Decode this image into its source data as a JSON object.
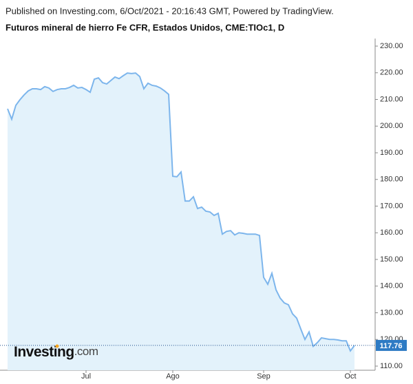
{
  "chart_data": {
    "type": "area",
    "published": "Published on Investing.com, 6/Oct/2021 - 20:16:43 GMT, Powered by TradingView.",
    "title": "Futuros mineral de hierro Fe CFR, Estados Unidos, CME:TIOc1, D",
    "logo_main": "Investing",
    "logo_suffix": ".com",
    "line_color": "#7cb5ec",
    "fill_color": "#e3f2fb",
    "last_label_color": "#2e7bc4",
    "categories": [
      null,
      null,
      null,
      null,
      null,
      null,
      null,
      null,
      null,
      null,
      null,
      null,
      null,
      null,
      null,
      null,
      null,
      null,
      null,
      "Jul",
      null,
      null,
      null,
      null,
      null,
      null,
      null,
      null,
      null,
      null,
      null,
      null,
      null,
      null,
      null,
      null,
      null,
      null,
      null,
      null,
      "Ago",
      null,
      null,
      null,
      null,
      null,
      null,
      null,
      null,
      null,
      null,
      null,
      null,
      null,
      null,
      null,
      null,
      null,
      null,
      null,
      null,
      null,
      "Sep",
      null,
      null,
      null,
      null,
      null,
      null,
      null,
      null,
      null,
      null,
      null,
      null,
      null,
      null,
      null,
      null,
      null,
      null,
      null,
      null,
      "Oct",
      null
    ],
    "values": [
      206.5,
      202.6,
      207.8,
      209.9,
      211.7,
      213.2,
      214,
      214,
      213.7,
      214.8,
      214.3,
      213,
      213.7,
      214,
      214,
      214.5,
      215.3,
      214.3,
      214.5,
      213.7,
      212.7,
      217.6,
      218.1,
      216.3,
      215.8,
      217.1,
      218.4,
      217.8,
      218.9,
      219.9,
      219.7,
      219.9,
      218.6,
      214,
      216.1,
      215.3,
      215,
      214.3,
      213.2,
      211.9,
      181.2,
      181,
      182.8,
      171.9,
      171.9,
      173.5,
      169.1,
      169.6,
      168.1,
      167.8,
      166.5,
      167.3,
      159.5,
      160.5,
      160.8,
      159.2,
      160,
      159.8,
      159.5,
      159.5,
      159.5,
      159,
      143.3,
      140.7,
      144.8,
      138.6,
      135.5,
      133.7,
      133,
      129.6,
      128,
      123.9,
      120,
      122.8,
      117.4,
      118.8,
      120.6,
      120.3,
      120,
      120,
      119.8,
      119.5,
      119.5,
      115.7,
      117.76
    ],
    "ylim": [
      110,
      230
    ],
    "yticks": [
      {
        "value": 110,
        "label": "110.00"
      },
      {
        "value": 120,
        "label": "120.00"
      },
      {
        "value": 130,
        "label": "130.00"
      },
      {
        "value": 140,
        "label": "140.00"
      },
      {
        "value": 150,
        "label": "150.00"
      },
      {
        "value": 160,
        "label": "160.00"
      },
      {
        "value": 170,
        "label": "170.00"
      },
      {
        "value": 180,
        "label": "180.00"
      },
      {
        "value": 190,
        "label": "190.00"
      },
      {
        "value": 200,
        "label": "200.00"
      },
      {
        "value": 210,
        "label": "210.00"
      },
      {
        "value": 220,
        "label": "220.00"
      },
      {
        "value": 230,
        "label": "230.00"
      }
    ]
  }
}
